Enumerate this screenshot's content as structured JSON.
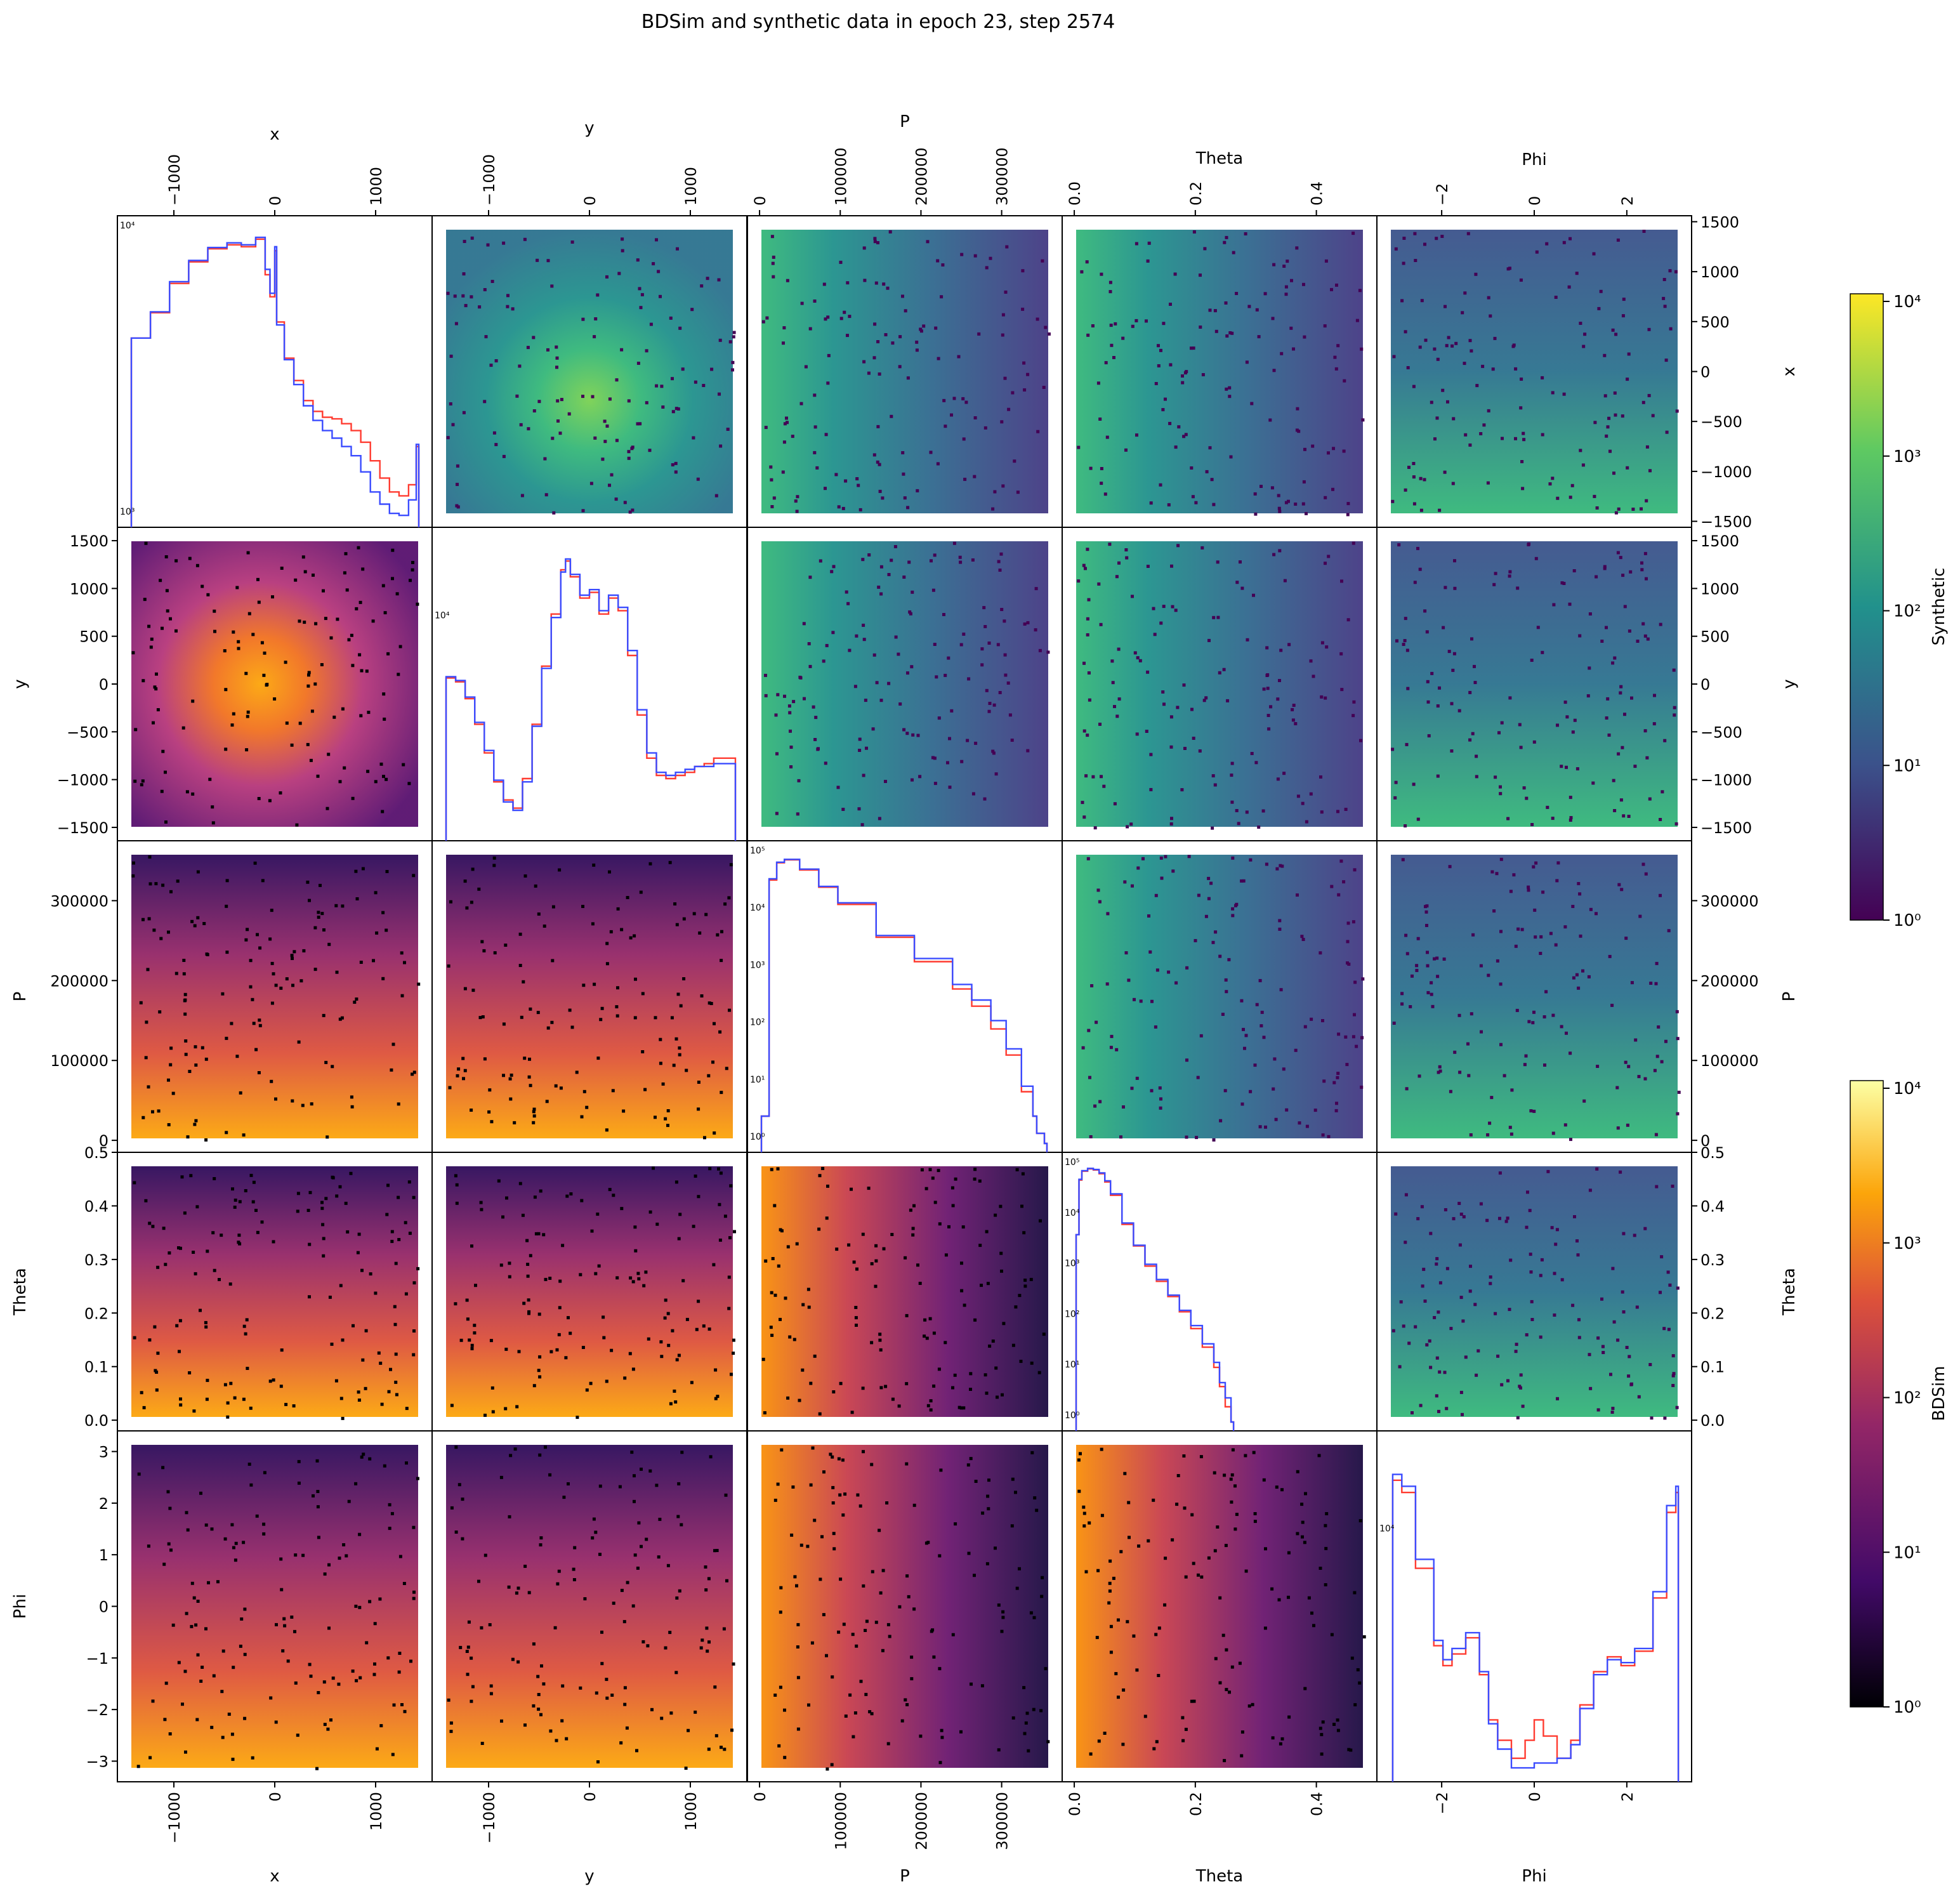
{
  "figure": {
    "title": "BDSim and synthetic data in epoch 23, step 2574"
  },
  "variables": [
    "x",
    "y",
    "P",
    "Theta",
    "Phi"
  ],
  "axis_ticks": {
    "x": [
      -1000,
      0,
      1000
    ],
    "y": [
      -1000,
      0,
      1000
    ],
    "P": [
      0,
      100000,
      200000,
      300000
    ],
    "Theta": [
      0.0,
      0.2,
      0.4
    ],
    "Phi": [
      -2,
      0,
      2
    ]
  },
  "axis_tick_labels": {
    "x": [
      "−1000",
      "0",
      "1000"
    ],
    "y": [
      "−1000",
      "0",
      "1000"
    ],
    "P": [
      "0",
      "100000",
      "200000",
      "300000"
    ],
    "Theta": [
      "0.0",
      "0.2",
      "0.4"
    ],
    "Phi": [
      "−2",
      "0",
      "2"
    ]
  },
  "row_tick_labels": {
    "x": [
      "1500",
      "1000",
      "500",
      "0",
      "−500",
      "−1000",
      "−1500"
    ],
    "y": [
      "1500",
      "1000",
      "500",
      "0",
      "−500",
      "−1000",
      "−1500"
    ],
    "P": [
      "300000",
      "200000",
      "100000",
      "0"
    ],
    "Theta": [
      "0.5",
      "0.4",
      "0.3",
      "0.2",
      "0.1",
      "0.0"
    ],
    "Phi": [
      "3",
      "2",
      "1",
      "0",
      "−1",
      "−2",
      "−3"
    ]
  },
  "row_tick_values": {
    "x": [
      1500,
      1000,
      500,
      0,
      -500,
      -1000,
      -1500
    ],
    "y": [
      1500,
      1000,
      500,
      0,
      -500,
      -1000,
      -1500
    ],
    "P": [
      300000,
      200000,
      100000,
      0
    ],
    "Theta": [
      0.5,
      0.4,
      0.3,
      0.2,
      0.1,
      0.0
    ],
    "Phi": [
      3,
      2,
      1,
      0,
      -1,
      -2,
      -3
    ]
  },
  "colorbars": [
    {
      "label": "Synthetic",
      "colormap": "viridis",
      "scale": "log",
      "range": [
        1,
        10000
      ],
      "tick_labels": [
        "10⁴",
        "10³",
        "10²",
        "10¹",
        "10⁰"
      ]
    },
    {
      "label": "BDSim",
      "colormap": "inferno",
      "scale": "log",
      "range": [
        1,
        10000
      ],
      "tick_labels": [
        "10⁴",
        "10³",
        "10²",
        "10¹",
        "10⁰"
      ]
    }
  ],
  "diag_tick_labels": {
    "x": [
      "10⁴",
      "10³"
    ],
    "y": [
      "10⁴"
    ],
    "P": [
      "10⁵",
      "10⁴",
      "10³",
      "10²",
      "10¹",
      "10⁰"
    ],
    "Theta": [
      "10⁵",
      "10⁴",
      "10³",
      "10²",
      "10¹",
      "10⁰"
    ],
    "Phi": [
      "10⁴"
    ]
  },
  "colors": {
    "bdsim_hist": "#ff3b30",
    "synthetic_hist": "#3a4bff"
  },
  "chart_data": [
    {
      "type": "line",
      "panel": "diagonal x",
      "xlabel": "x",
      "xlim": [
        -1500,
        1500
      ],
      "yscale": "log",
      "ylim": [
        800,
        25000
      ],
      "x": [
        -1500,
        -1300,
        -1100,
        -900,
        -700,
        -500,
        -350,
        -200,
        -100,
        -50,
        0,
        20,
        100,
        200,
        300,
        400,
        500,
        600,
        700,
        800,
        900,
        1000,
        1100,
        1200,
        1300,
        1400,
        1480
      ],
      "series": [
        {
          "name": "BDSim",
          "values": [
            7000,
            9500,
            13500,
            17500,
            20500,
            21500,
            21000,
            23000,
            15000,
            11500,
            20000,
            8500,
            5500,
            4200,
            3300,
            2900,
            2700,
            2650,
            2500,
            2300,
            2000,
            1600,
            1300,
            1100,
            1050,
            1200,
            1900
          ]
        },
        {
          "name": "Synthetic",
          "values": [
            7000,
            9600,
            13800,
            17800,
            20800,
            22000,
            21500,
            23500,
            16000,
            12000,
            21000,
            8200,
            5400,
            4000,
            3100,
            2600,
            2300,
            2100,
            1900,
            1700,
            1400,
            1100,
            950,
            850,
            830,
            1000,
            1950
          ]
        }
      ]
    },
    {
      "type": "line",
      "panel": "diagonal y",
      "xlabel": "y",
      "xlim": [
        -1500,
        1500
      ],
      "yscale": "log",
      "ylim": [
        2000,
        30000
      ],
      "x": [
        -1500,
        -1400,
        -1300,
        -1200,
        -1100,
        -1000,
        -900,
        -800,
        -700,
        -600,
        -500,
        -400,
        -300,
        -250,
        -200,
        -100,
        0,
        100,
        200,
        300,
        400,
        500,
        600,
        700,
        800,
        900,
        1000,
        1100,
        1200,
        1300,
        1400,
        1500
      ],
      "series": [
        {
          "name": "BDSim",
          "values": [
            8500,
            8200,
            7000,
            5500,
            4200,
            3200,
            2700,
            2500,
            3300,
            5500,
            9500,
            15500,
            23500,
            25500,
            22000,
            18000,
            19000,
            15500,
            18000,
            16000,
            10500,
            6000,
            4000,
            3400,
            3300,
            3400,
            3500,
            3700,
            3800,
            4000,
            4000,
            4000
          ]
        },
        {
          "name": "Synthetic",
          "values": [
            8600,
            8300,
            7100,
            5600,
            4300,
            3250,
            2650,
            2450,
            3200,
            5400,
            9300,
            15000,
            23000,
            26000,
            22500,
            18500,
            19500,
            16000,
            18500,
            16500,
            11000,
            6300,
            4200,
            3500,
            3400,
            3500,
            3600,
            3700,
            3700,
            3800,
            3800,
            3800
          ]
        }
      ]
    },
    {
      "type": "line",
      "panel": "diagonal P",
      "xlabel": "P",
      "xlim": [
        0,
        375000
      ],
      "yscale": "log",
      "ylim": [
        1,
        100000
      ],
      "x": [
        0,
        10000,
        20000,
        30000,
        50000,
        75000,
        100000,
        150000,
        200000,
        250000,
        275000,
        300000,
        320000,
        340000,
        355000,
        360000,
        370000
      ],
      "series": [
        {
          "name": "BDSim",
          "values": [
            3,
            40000,
            80000,
            90000,
            60000,
            30000,
            15000,
            4000,
            1500,
            500,
            250,
            100,
            35,
            8,
            3,
            1.5,
            1
          ]
        },
        {
          "name": "Synthetic",
          "values": [
            3,
            42000,
            82000,
            92000,
            62000,
            31000,
            16000,
            4300,
            1700,
            600,
            320,
            140,
            45,
            10,
            3,
            1.5,
            1
          ]
        }
      ]
    },
    {
      "type": "line",
      "panel": "diagonal Theta",
      "xlabel": "Theta",
      "xlim": [
        0,
        0.5
      ],
      "yscale": "log",
      "ylim": [
        1,
        100000
      ],
      "x": [
        0.0,
        0.005,
        0.01,
        0.02,
        0.03,
        0.04,
        0.05,
        0.06,
        0.08,
        0.1,
        0.12,
        0.14,
        0.16,
        0.18,
        0.2,
        0.22,
        0.24,
        0.25,
        0.26,
        0.27
      ],
      "series": [
        {
          "name": "BDSim",
          "values": [
            5000,
            60000,
            90000,
            100000,
            95000,
            80000,
            55000,
            30000,
            8000,
            3000,
            1200,
            600,
            300,
            150,
            70,
            30,
            12,
            5,
            2,
            1
          ]
        },
        {
          "name": "Synthetic",
          "values": [
            5000,
            62000,
            92000,
            102000,
            97000,
            83000,
            58000,
            32000,
            8500,
            3100,
            1300,
            650,
            320,
            160,
            80,
            35,
            15,
            6,
            3,
            1
          ]
        }
      ]
    },
    {
      "type": "line",
      "panel": "diagonal Phi",
      "xlabel": "Phi",
      "xlim": [
        -3.14,
        3.14
      ],
      "yscale": "log",
      "ylim": [
        4000,
        20000
      ],
      "x": [
        -3.1,
        -2.9,
        -2.6,
        -2.2,
        -2.0,
        -1.8,
        -1.5,
        -1.2,
        -1.0,
        -0.8,
        -0.5,
        -0.2,
        0.0,
        0.2,
        0.5,
        0.8,
        1.0,
        1.3,
        1.6,
        1.9,
        2.2,
        2.6,
        2.9,
        3.1
      ],
      "series": [
        {
          "name": "BDSim",
          "values": [
            17000,
            16000,
            11000,
            7500,
            6800,
            7200,
            7800,
            6500,
            5200,
            4700,
            4300,
            4700,
            5200,
            4800,
            4300,
            4700,
            5600,
            6600,
            7100,
            6800,
            7300,
            9500,
            14500,
            16000
          ]
        },
        {
          "name": "Synthetic",
          "values": [
            17500,
            16500,
            11500,
            7700,
            7000,
            7400,
            8000,
            6600,
            5100,
            4500,
            4100,
            4100,
            4200,
            4200,
            4300,
            4600,
            5500,
            6500,
            7000,
            6900,
            7400,
            9800,
            15000,
            16500
          ]
        }
      ]
    }
  ]
}
